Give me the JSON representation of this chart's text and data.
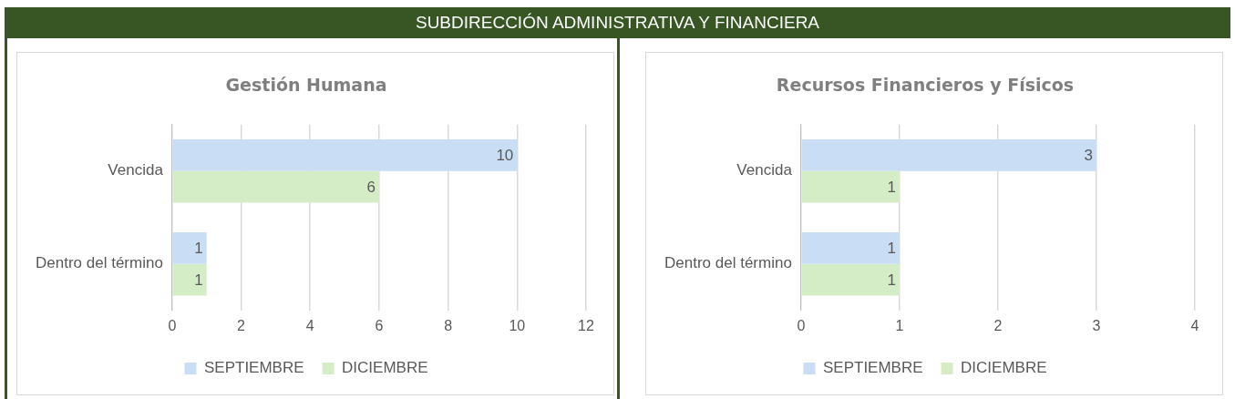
{
  "chart_data": [
    {
      "type": "bar",
      "orientation": "horizontal",
      "title": "Gestión Humana",
      "annotations": [
        "SUBDIRECCIÓN ADMINISTRATIVA Y FINANCIERA"
      ],
      "categories": [
        "Vencida",
        "Dentro del término"
      ],
      "series": [
        {
          "name": "SEPTIEMBRE",
          "color": "#c9def5",
          "values": [
            10,
            1
          ]
        },
        {
          "name": "DICIEMBRE",
          "color": "#d5edc6",
          "values": [
            6,
            1
          ]
        }
      ],
      "xlim": [
        0,
        12
      ],
      "xticks": [
        0,
        2,
        4,
        6,
        8,
        10,
        12
      ],
      "grid": "x",
      "legend": "bottom",
      "data_labels": true
    },
    {
      "type": "bar",
      "orientation": "horizontal",
      "title": "Recursos Financieros y Físicos",
      "categories": [
        "Vencida",
        "Dentro del término"
      ],
      "series": [
        {
          "name": "SEPTIEMBRE",
          "color": "#c9def5",
          "values": [
            3,
            1
          ]
        },
        {
          "name": "DICIEMBRE",
          "color": "#d5edc6",
          "values": [
            1,
            1
          ]
        }
      ],
      "xlim": [
        0,
        4
      ],
      "xticks": [
        0,
        1,
        2,
        3,
        4
      ],
      "grid": "x",
      "legend": "bottom",
      "data_labels": true
    }
  ]
}
